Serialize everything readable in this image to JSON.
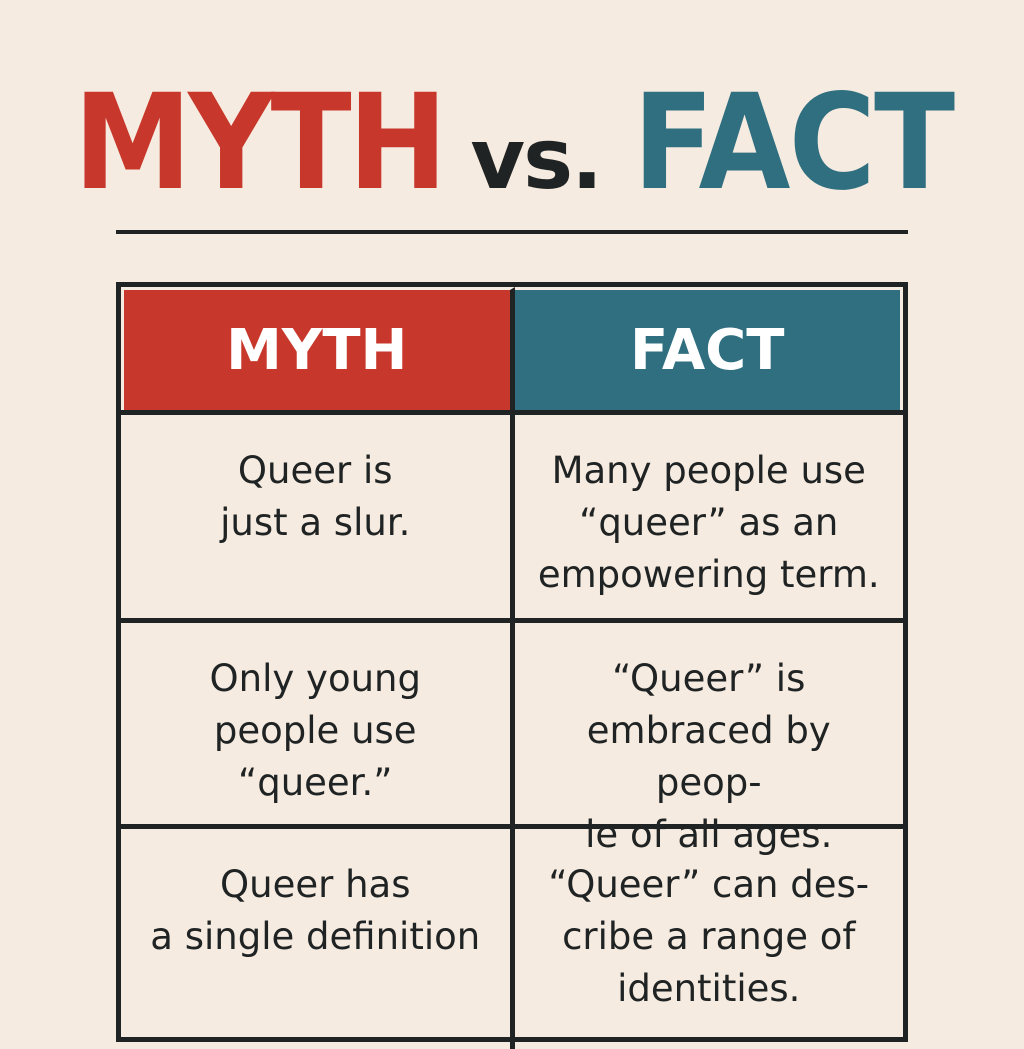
{
  "title": {
    "myth": "MYTH",
    "vs": "vs.",
    "fact": "FACT"
  },
  "colors": {
    "background": "#f6ebe0",
    "myth": "#c8372b",
    "fact": "#2f6f80",
    "ink": "#1f2323"
  },
  "table": {
    "headers": {
      "myth": "MYTH",
      "fact": "FACT"
    },
    "rows": [
      {
        "myth": "Queer is\njust a slur.",
        "fact": "Many people use\n“queer” as an\nempowering term."
      },
      {
        "myth": "Only young\npeople use\n“queer.”",
        "fact": "“Queer” is\nembraced by peop-\nle of all ages."
      },
      {
        "myth": "Queer has\na single definition",
        "fact": "“Queer” can des-\ncribe a range of\nidentities."
      }
    ]
  }
}
